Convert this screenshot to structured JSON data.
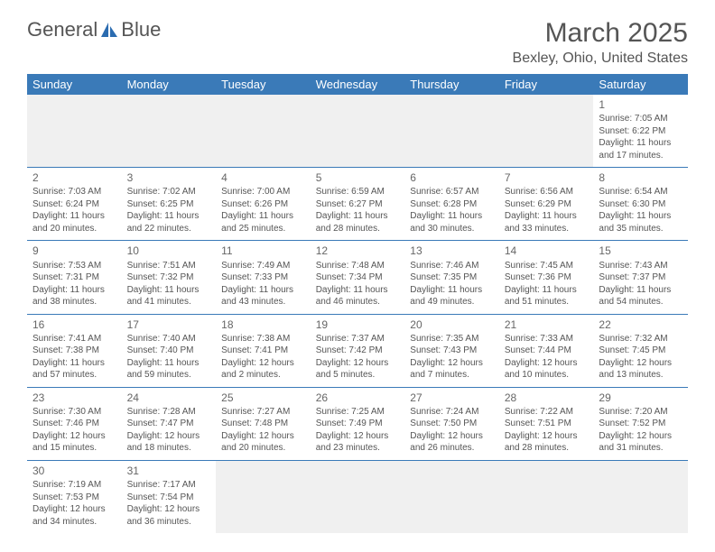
{
  "logo": {
    "part1": "General",
    "part2": "Blue"
  },
  "header": {
    "month_title": "March 2025",
    "location": "Bexley, Ohio, United States"
  },
  "day_names": [
    "Sunday",
    "Monday",
    "Tuesday",
    "Wednesday",
    "Thursday",
    "Friday",
    "Saturday"
  ],
  "colors": {
    "header_bg": "#3a7ab8",
    "header_text": "#ffffff",
    "body_text": "#555555",
    "border": "#3a7ab8",
    "empty_bg": "#f0f0f0",
    "logo_accent": "#2b6cb0"
  },
  "weeks": [
    [
      null,
      null,
      null,
      null,
      null,
      null,
      {
        "n": "1",
        "sr": "Sunrise: 7:05 AM",
        "ss": "Sunset: 6:22 PM",
        "d1": "Daylight: 11 hours",
        "d2": "and 17 minutes."
      }
    ],
    [
      {
        "n": "2",
        "sr": "Sunrise: 7:03 AM",
        "ss": "Sunset: 6:24 PM",
        "d1": "Daylight: 11 hours",
        "d2": "and 20 minutes."
      },
      {
        "n": "3",
        "sr": "Sunrise: 7:02 AM",
        "ss": "Sunset: 6:25 PM",
        "d1": "Daylight: 11 hours",
        "d2": "and 22 minutes."
      },
      {
        "n": "4",
        "sr": "Sunrise: 7:00 AM",
        "ss": "Sunset: 6:26 PM",
        "d1": "Daylight: 11 hours",
        "d2": "and 25 minutes."
      },
      {
        "n": "5",
        "sr": "Sunrise: 6:59 AM",
        "ss": "Sunset: 6:27 PM",
        "d1": "Daylight: 11 hours",
        "d2": "and 28 minutes."
      },
      {
        "n": "6",
        "sr": "Sunrise: 6:57 AM",
        "ss": "Sunset: 6:28 PM",
        "d1": "Daylight: 11 hours",
        "d2": "and 30 minutes."
      },
      {
        "n": "7",
        "sr": "Sunrise: 6:56 AM",
        "ss": "Sunset: 6:29 PM",
        "d1": "Daylight: 11 hours",
        "d2": "and 33 minutes."
      },
      {
        "n": "8",
        "sr": "Sunrise: 6:54 AM",
        "ss": "Sunset: 6:30 PM",
        "d1": "Daylight: 11 hours",
        "d2": "and 35 minutes."
      }
    ],
    [
      {
        "n": "9",
        "sr": "Sunrise: 7:53 AM",
        "ss": "Sunset: 7:31 PM",
        "d1": "Daylight: 11 hours",
        "d2": "and 38 minutes."
      },
      {
        "n": "10",
        "sr": "Sunrise: 7:51 AM",
        "ss": "Sunset: 7:32 PM",
        "d1": "Daylight: 11 hours",
        "d2": "and 41 minutes."
      },
      {
        "n": "11",
        "sr": "Sunrise: 7:49 AM",
        "ss": "Sunset: 7:33 PM",
        "d1": "Daylight: 11 hours",
        "d2": "and 43 minutes."
      },
      {
        "n": "12",
        "sr": "Sunrise: 7:48 AM",
        "ss": "Sunset: 7:34 PM",
        "d1": "Daylight: 11 hours",
        "d2": "and 46 minutes."
      },
      {
        "n": "13",
        "sr": "Sunrise: 7:46 AM",
        "ss": "Sunset: 7:35 PM",
        "d1": "Daylight: 11 hours",
        "d2": "and 49 minutes."
      },
      {
        "n": "14",
        "sr": "Sunrise: 7:45 AM",
        "ss": "Sunset: 7:36 PM",
        "d1": "Daylight: 11 hours",
        "d2": "and 51 minutes."
      },
      {
        "n": "15",
        "sr": "Sunrise: 7:43 AM",
        "ss": "Sunset: 7:37 PM",
        "d1": "Daylight: 11 hours",
        "d2": "and 54 minutes."
      }
    ],
    [
      {
        "n": "16",
        "sr": "Sunrise: 7:41 AM",
        "ss": "Sunset: 7:38 PM",
        "d1": "Daylight: 11 hours",
        "d2": "and 57 minutes."
      },
      {
        "n": "17",
        "sr": "Sunrise: 7:40 AM",
        "ss": "Sunset: 7:40 PM",
        "d1": "Daylight: 11 hours",
        "d2": "and 59 minutes."
      },
      {
        "n": "18",
        "sr": "Sunrise: 7:38 AM",
        "ss": "Sunset: 7:41 PM",
        "d1": "Daylight: 12 hours",
        "d2": "and 2 minutes."
      },
      {
        "n": "19",
        "sr": "Sunrise: 7:37 AM",
        "ss": "Sunset: 7:42 PM",
        "d1": "Daylight: 12 hours",
        "d2": "and 5 minutes."
      },
      {
        "n": "20",
        "sr": "Sunrise: 7:35 AM",
        "ss": "Sunset: 7:43 PM",
        "d1": "Daylight: 12 hours",
        "d2": "and 7 minutes."
      },
      {
        "n": "21",
        "sr": "Sunrise: 7:33 AM",
        "ss": "Sunset: 7:44 PM",
        "d1": "Daylight: 12 hours",
        "d2": "and 10 minutes."
      },
      {
        "n": "22",
        "sr": "Sunrise: 7:32 AM",
        "ss": "Sunset: 7:45 PM",
        "d1": "Daylight: 12 hours",
        "d2": "and 13 minutes."
      }
    ],
    [
      {
        "n": "23",
        "sr": "Sunrise: 7:30 AM",
        "ss": "Sunset: 7:46 PM",
        "d1": "Daylight: 12 hours",
        "d2": "and 15 minutes."
      },
      {
        "n": "24",
        "sr": "Sunrise: 7:28 AM",
        "ss": "Sunset: 7:47 PM",
        "d1": "Daylight: 12 hours",
        "d2": "and 18 minutes."
      },
      {
        "n": "25",
        "sr": "Sunrise: 7:27 AM",
        "ss": "Sunset: 7:48 PM",
        "d1": "Daylight: 12 hours",
        "d2": "and 20 minutes."
      },
      {
        "n": "26",
        "sr": "Sunrise: 7:25 AM",
        "ss": "Sunset: 7:49 PM",
        "d1": "Daylight: 12 hours",
        "d2": "and 23 minutes."
      },
      {
        "n": "27",
        "sr": "Sunrise: 7:24 AM",
        "ss": "Sunset: 7:50 PM",
        "d1": "Daylight: 12 hours",
        "d2": "and 26 minutes."
      },
      {
        "n": "28",
        "sr": "Sunrise: 7:22 AM",
        "ss": "Sunset: 7:51 PM",
        "d1": "Daylight: 12 hours",
        "d2": "and 28 minutes."
      },
      {
        "n": "29",
        "sr": "Sunrise: 7:20 AM",
        "ss": "Sunset: 7:52 PM",
        "d1": "Daylight: 12 hours",
        "d2": "and 31 minutes."
      }
    ],
    [
      {
        "n": "30",
        "sr": "Sunrise: 7:19 AM",
        "ss": "Sunset: 7:53 PM",
        "d1": "Daylight: 12 hours",
        "d2": "and 34 minutes."
      },
      {
        "n": "31",
        "sr": "Sunrise: 7:17 AM",
        "ss": "Sunset: 7:54 PM",
        "d1": "Daylight: 12 hours",
        "d2": "and 36 minutes."
      },
      null,
      null,
      null,
      null,
      null
    ]
  ]
}
